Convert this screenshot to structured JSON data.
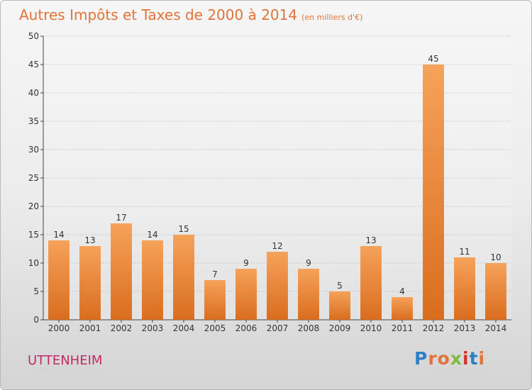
{
  "title": "Autres Impôts et Taxes de 2000 à 2014",
  "unit": "(en milliers d'€)",
  "commune": "UTTENHEIM",
  "logo": {
    "text": "Proxiti",
    "colors": [
      "#2f7fc8",
      "#e2733a",
      "#e2733a",
      "#7cba3b",
      "#d4322b",
      "#2f7fc8",
      "#e2733a"
    ]
  },
  "colors": {
    "bar_top": "#f6a25a",
    "bar_bottom": "#d96d1e",
    "title": "#e2733a",
    "commune": "#c22a63"
  },
  "chart_data": {
    "type": "bar",
    "categories": [
      "2000",
      "2001",
      "2002",
      "2003",
      "2004",
      "2005",
      "2006",
      "2007",
      "2008",
      "2009",
      "2010",
      "2011",
      "2012",
      "2013",
      "2014"
    ],
    "values": [
      14,
      13,
      17,
      14,
      15,
      7,
      9,
      12,
      9,
      5,
      13,
      4,
      45,
      11,
      10
    ],
    "ylim": [
      0,
      50
    ],
    "yticks": [
      0,
      5,
      10,
      15,
      20,
      25,
      30,
      35,
      40,
      45,
      50
    ],
    "grid": true
  }
}
